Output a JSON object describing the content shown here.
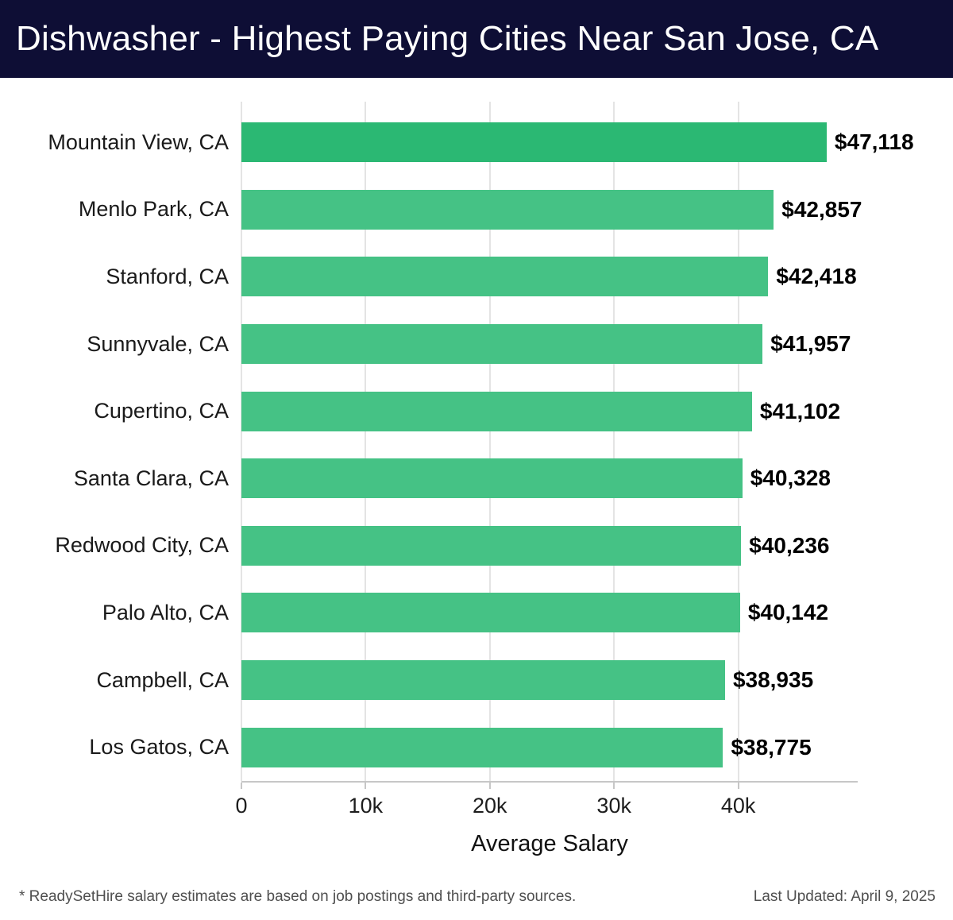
{
  "header": {
    "title": "Dishwasher - Highest Paying Cities Near San Jose, CA",
    "bg_color": "#0e0e35"
  },
  "chart_data": {
    "type": "bar",
    "orientation": "horizontal",
    "title": "Dishwasher - Highest Paying Cities Near San Jose, CA",
    "categories": [
      "Mountain View, CA",
      "Menlo Park, CA",
      "Stanford, CA",
      "Sunnyvale, CA",
      "Cupertino, CA",
      "Santa Clara, CA",
      "Redwood City, CA",
      "Palo Alto, CA",
      "Campbell, CA",
      "Los Gatos, CA"
    ],
    "values": [
      47118,
      42857,
      42418,
      41957,
      41102,
      40328,
      40236,
      40142,
      38935,
      38775
    ],
    "value_labels": [
      "$47,118",
      "$42,857",
      "$42,418",
      "$41,957",
      "$41,102",
      "$40,328",
      "$40,236",
      "$40,142",
      "$38,935",
      "$38,775"
    ],
    "xlabel": "Average Salary",
    "x_ticks": [
      "0",
      "10k",
      "20k",
      "30k",
      "40k"
    ],
    "x_tick_values": [
      0,
      10000,
      20000,
      30000,
      40000
    ],
    "xlim": [
      0,
      49616
    ],
    "grid": "vertical",
    "legend": "none",
    "bar_color": "#45c285",
    "highlight_color": "#2bb873",
    "highlight_index": 0
  },
  "footer": {
    "note": "* ReadySetHire salary estimates are based on job postings and third-party sources.",
    "last_updated": "Last Updated: April 9, 2025"
  }
}
